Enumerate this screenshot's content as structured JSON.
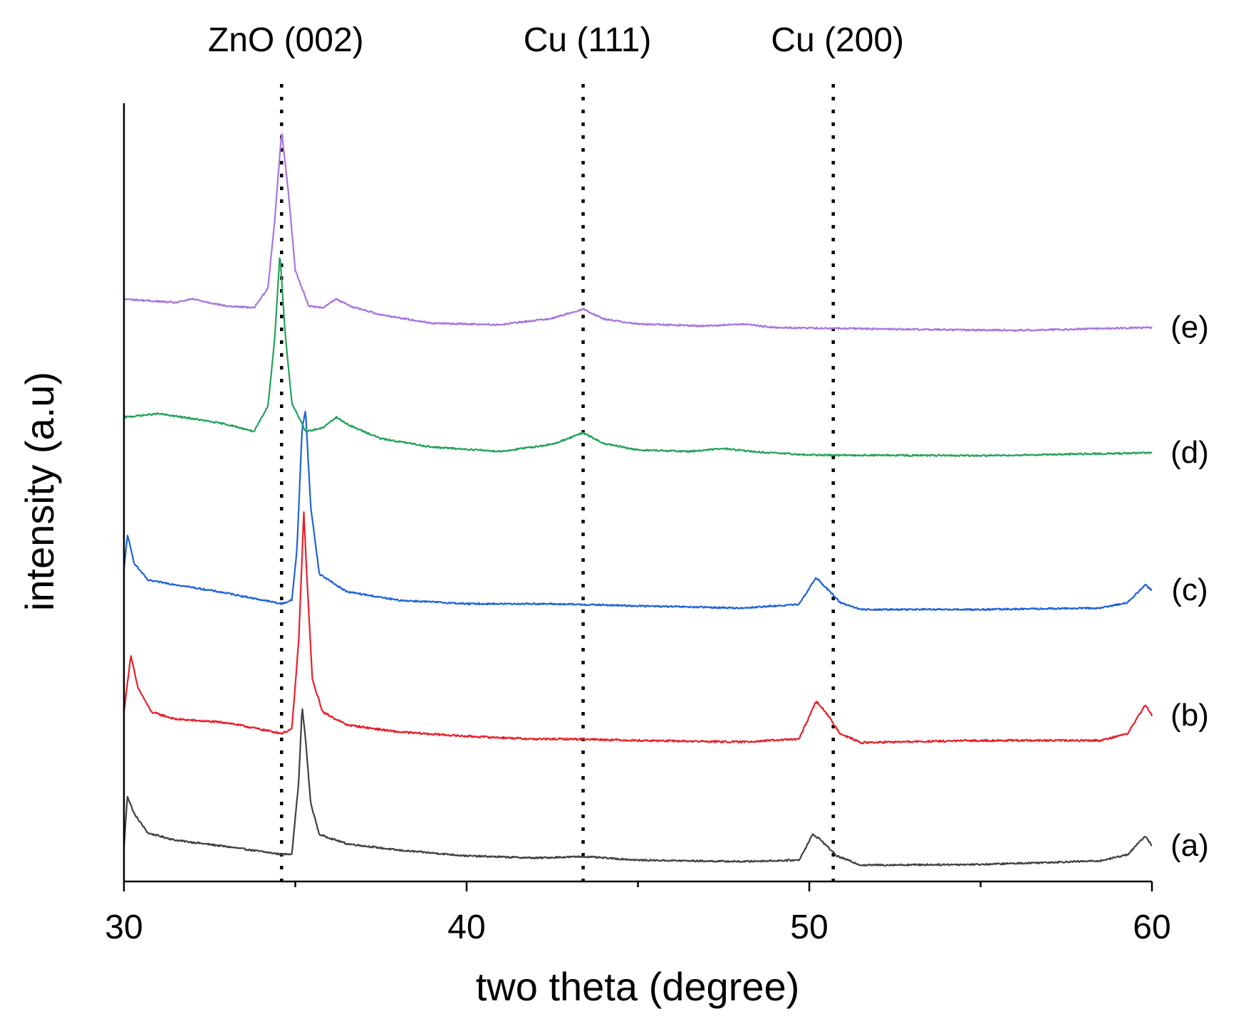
{
  "chart_data": {
    "type": "line",
    "title": "",
    "xlabel": "two theta (degree)",
    "ylabel": "intensity (a.u)",
    "xlim": [
      30,
      60
    ],
    "xticks": [
      30,
      40,
      50,
      60
    ],
    "xticks_minor": [
      35,
      45,
      55
    ],
    "grid": false,
    "legend": "none",
    "reference_lines": [
      {
        "label": "ZnO (002)",
        "x": 34.6
      },
      {
        "label": "Cu (111)",
        "x": 43.4
      },
      {
        "label": "Cu (200)",
        "x": 50.7
      }
    ],
    "series": [
      {
        "name": "(a)",
        "color": "#404040",
        "noise": 2.5,
        "points": [
          [
            30.0,
            1.8
          ],
          [
            30.1,
            9.0
          ],
          [
            30.3,
            6.5
          ],
          [
            30.7,
            3.8
          ],
          [
            31.5,
            2.8
          ],
          [
            33.0,
            1.9
          ],
          [
            34.6,
            0.8
          ],
          [
            34.9,
            0.9
          ],
          [
            35.1,
            11
          ],
          [
            35.2,
            21.5
          ],
          [
            35.3,
            17
          ],
          [
            35.45,
            8.0
          ],
          [
            35.7,
            3.6
          ],
          [
            36.5,
            2.3
          ],
          [
            38.0,
            1.4
          ],
          [
            40.0,
            0.6
          ],
          [
            42.0,
            0.3
          ],
          [
            43.4,
            0.5
          ],
          [
            45.0,
            0.0
          ],
          [
            48.0,
            -0.2
          ],
          [
            49.7,
            0.0
          ],
          [
            50.1,
            3.6
          ],
          [
            50.3,
            3.0
          ],
          [
            50.8,
            0.6
          ],
          [
            51.5,
            -0.7
          ],
          [
            55.0,
            -0.6
          ],
          [
            58.5,
            -0.1
          ],
          [
            59.3,
            0.8
          ],
          [
            59.8,
            3.4
          ],
          [
            60.0,
            2.0
          ]
        ]
      },
      {
        "name": "(b)",
        "color": "#e8202a",
        "noise": 3.0,
        "points": [
          [
            30.0,
            4.0
          ],
          [
            30.2,
            12
          ],
          [
            30.4,
            7.5
          ],
          [
            30.8,
            4.0
          ],
          [
            31.5,
            3.0
          ],
          [
            33.0,
            2.5
          ],
          [
            34.6,
            1.0
          ],
          [
            34.9,
            1.6
          ],
          [
            35.1,
            14
          ],
          [
            35.25,
            32
          ],
          [
            35.35,
            22
          ],
          [
            35.5,
            8.5
          ],
          [
            35.8,
            4.0
          ],
          [
            36.5,
            2.2
          ],
          [
            38.0,
            1.2
          ],
          [
            40.0,
            0.6
          ],
          [
            42.0,
            0.2
          ],
          [
            43.4,
            0.2
          ],
          [
            45.0,
            0.0
          ],
          [
            48.0,
            -0.2
          ],
          [
            49.7,
            0.2
          ],
          [
            50.2,
            5.5
          ],
          [
            50.4,
            4.5
          ],
          [
            50.9,
            1.0
          ],
          [
            51.5,
            -0.3
          ],
          [
            55.0,
            0.0
          ],
          [
            58.5,
            0.0
          ],
          [
            59.3,
            1.0
          ],
          [
            59.8,
            5.0
          ],
          [
            60.0,
            3.5
          ]
        ]
      },
      {
        "name": "(c)",
        "color": "#1f63d8",
        "noise": 2.5,
        "points": [
          [
            30.0,
            5.0
          ],
          [
            30.1,
            10
          ],
          [
            30.3,
            6.0
          ],
          [
            30.7,
            3.6
          ],
          [
            31.5,
            3.0
          ],
          [
            33.0,
            1.8
          ],
          [
            34.6,
            0.3
          ],
          [
            34.9,
            0.8
          ],
          [
            35.05,
            8
          ],
          [
            35.2,
            25
          ],
          [
            35.3,
            27.5
          ],
          [
            35.45,
            14
          ],
          [
            35.7,
            4.5
          ],
          [
            36.5,
            2.0
          ],
          [
            38.0,
            0.8
          ],
          [
            40.0,
            0.3
          ],
          [
            42.0,
            0.3
          ],
          [
            43.4,
            0.2
          ],
          [
            45.0,
            0.0
          ],
          [
            48.0,
            -0.3
          ],
          [
            49.7,
            0.2
          ],
          [
            50.2,
            4.0
          ],
          [
            50.4,
            3.0
          ],
          [
            50.9,
            0.5
          ],
          [
            51.5,
            -0.5
          ],
          [
            55.0,
            -0.5
          ],
          [
            58.5,
            -0.3
          ],
          [
            59.3,
            0.5
          ],
          [
            59.8,
            3.0
          ],
          [
            60.0,
            2.2
          ]
        ]
      },
      {
        "name": "(d)",
        "color": "#22a25a",
        "noise": 2.5,
        "points": [
          [
            30.0,
            5.0
          ],
          [
            31.0,
            5.5
          ],
          [
            32.0,
            4.8
          ],
          [
            33.0,
            4.0
          ],
          [
            33.8,
            3.0
          ],
          [
            34.2,
            6.5
          ],
          [
            34.4,
            16
          ],
          [
            34.55,
            28
          ],
          [
            34.7,
            17
          ],
          [
            34.9,
            7.0
          ],
          [
            35.3,
            3.0
          ],
          [
            35.8,
            3.5
          ],
          [
            36.2,
            5.0
          ],
          [
            36.6,
            3.8
          ],
          [
            37.5,
            2.0
          ],
          [
            39.0,
            0.8
          ],
          [
            41.0,
            0.2
          ],
          [
            42.5,
            1.2
          ],
          [
            43.4,
            2.8
          ],
          [
            44.0,
            1.3
          ],
          [
            45.0,
            0.4
          ],
          [
            46.5,
            0.2
          ],
          [
            47.5,
            0.6
          ],
          [
            48.5,
            0.1
          ],
          [
            50.0,
            -0.3
          ],
          [
            55.0,
            -0.4
          ],
          [
            60.0,
            0.0
          ]
        ]
      },
      {
        "name": "(e)",
        "color": "#a875dd",
        "noise": 2.5,
        "points": [
          [
            30.0,
            4.0
          ],
          [
            31.5,
            3.5
          ],
          [
            32.0,
            4.0
          ],
          [
            33.0,
            3.0
          ],
          [
            33.8,
            2.8
          ],
          [
            34.2,
            5.5
          ],
          [
            34.4,
            15
          ],
          [
            34.6,
            27.5
          ],
          [
            34.8,
            19
          ],
          [
            35.0,
            8.0
          ],
          [
            35.4,
            3.0
          ],
          [
            35.8,
            2.8
          ],
          [
            36.2,
            4.0
          ],
          [
            36.6,
            3.0
          ],
          [
            37.5,
            1.8
          ],
          [
            39.0,
            0.6
          ],
          [
            41.0,
            0.4
          ],
          [
            42.5,
            1.3
          ],
          [
            43.4,
            2.6
          ],
          [
            44.0,
            1.2
          ],
          [
            45.0,
            0.5
          ],
          [
            47.0,
            0.2
          ],
          [
            48.0,
            0.5
          ],
          [
            49.0,
            0.0
          ],
          [
            52.0,
            -0.2
          ],
          [
            56.0,
            -0.4
          ],
          [
            60.0,
            0.0
          ]
        ]
      }
    ]
  }
}
